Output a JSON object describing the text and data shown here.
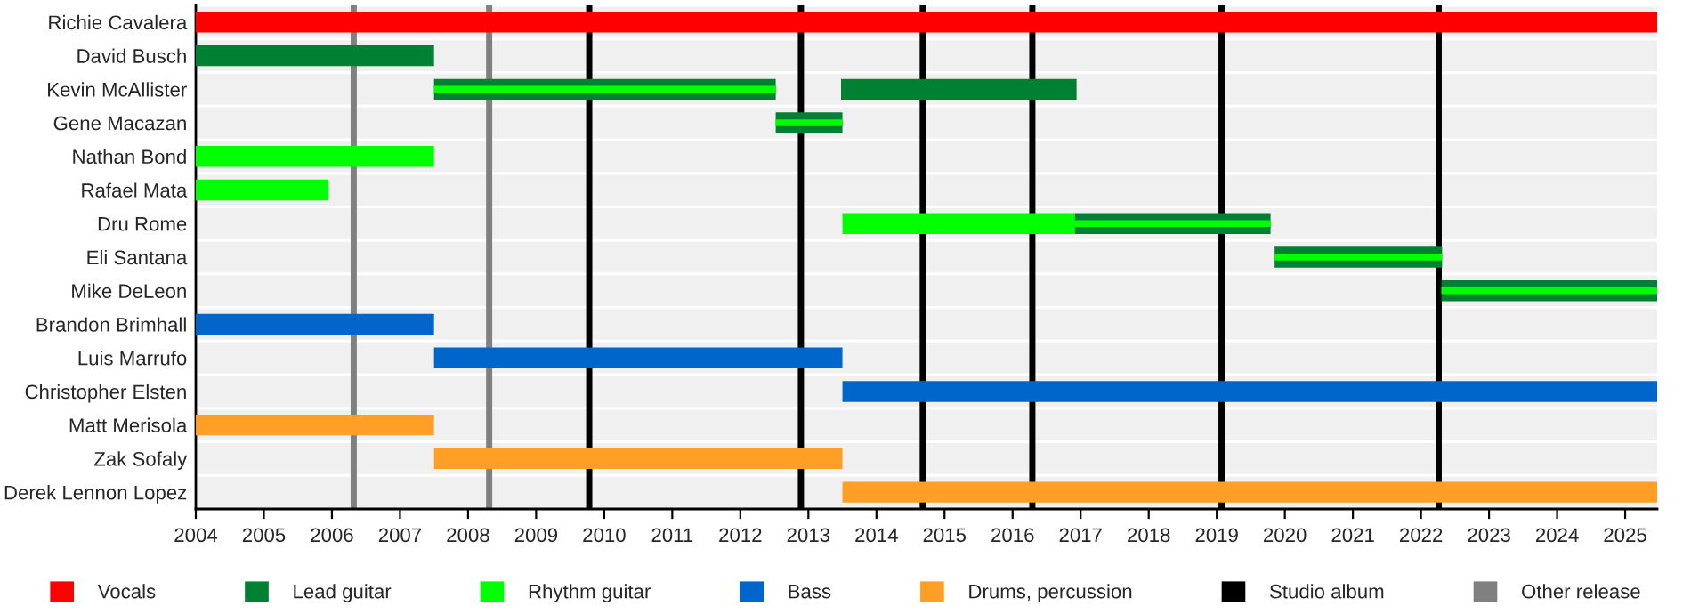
{
  "chart_data": {
    "type": "bar",
    "orientation": "horizontal",
    "categories": [
      "Richie Cavalera",
      "David Busch",
      "Kevin McAllister",
      "Gene Macazan",
      "Nathan Bond",
      "Rafael Mata",
      "Dru Rome",
      "Eli Santana",
      "Mike DeLeon",
      "Brandon Brimhall",
      "Luis Marrufo",
      "Christopher Elsten",
      "Matt Merisola",
      "Zak Sofaly",
      "Derek Lennon Lopez"
    ],
    "series": [
      {
        "name": "Vocals",
        "color": "#ff0000",
        "base": [
          2004,
          null,
          null,
          null,
          null,
          null,
          null,
          null,
          null,
          null,
          null,
          null,
          null,
          null,
          null
        ],
        "values": [
          21.47,
          null,
          null,
          null,
          null,
          null,
          null,
          null,
          null,
          null,
          null,
          null,
          null,
          null,
          null
        ]
      },
      {
        "name": "Lead guitar",
        "color": "#008033",
        "base": [
          null,
          2004,
          2007.5,
          2012.52,
          null,
          null,
          2016.91,
          2019.85,
          2022.3,
          null,
          null,
          null,
          null,
          null,
          null
        ],
        "values": [
          null,
          3.5,
          5.02,
          0.98,
          null,
          null,
          2.88,
          2.46,
          3.17,
          null,
          null,
          null,
          null,
          null,
          null
        ]
      },
      {
        "color": "#008033",
        "base": [
          null,
          null,
          2013.48,
          null,
          null,
          null,
          null,
          null,
          null,
          null,
          null,
          null,
          null,
          null,
          null
        ],
        "values": [
          null,
          null,
          3.46,
          null,
          null,
          null,
          null,
          null,
          null,
          null,
          null,
          null,
          null,
          null,
          null
        ]
      },
      {
        "name": "Rhythm guitar",
        "color": "#00ff00",
        "base": [
          null,
          null,
          2007.5,
          2012.52,
          2004,
          2004,
          2013.5,
          2019.85,
          2022.3,
          null,
          null,
          null,
          null,
          null,
          null
        ],
        "values": [
          null,
          null,
          5.02,
          0.98,
          3.5,
          1.95,
          3.41,
          2.46,
          3.17,
          null,
          null,
          null,
          null,
          null,
          null
        ]
      },
      {
        "color": "#00ff00",
        "base": [
          null,
          null,
          null,
          null,
          null,
          null,
          2016.91,
          null,
          null,
          null,
          null,
          null,
          null,
          null,
          null
        ],
        "values": [
          null,
          null,
          null,
          null,
          null,
          null,
          2.88,
          null,
          null,
          null,
          null,
          null,
          null,
          null,
          null
        ]
      },
      {
        "name": "Bass",
        "color": "#0066cc",
        "base": [
          null,
          null,
          null,
          null,
          null,
          null,
          null,
          null,
          null,
          2004,
          2007.5,
          2013.5,
          null,
          null,
          null
        ],
        "values": [
          null,
          null,
          null,
          null,
          null,
          null,
          null,
          null,
          null,
          3.5,
          6.0,
          11.97,
          null,
          null,
          null
        ]
      },
      {
        "name": "Drums, percussion",
        "color": "#ff9f26",
        "base": [
          null,
          null,
          null,
          null,
          null,
          null,
          null,
          null,
          null,
          null,
          null,
          null,
          2004,
          2007.5,
          2013.5
        ],
        "values": [
          null,
          null,
          null,
          null,
          null,
          null,
          null,
          null,
          null,
          null,
          null,
          null,
          3.5,
          6.0,
          11.97
        ]
      }
    ],
    "ref_lines": [
      {
        "axis": "x",
        "value": 2009.78,
        "label": "Studio album",
        "color": "#000000"
      },
      {
        "axis": "x",
        "value": 2012.89,
        "color": "#000000"
      },
      {
        "axis": "x",
        "value": 2014.68,
        "color": "#000000"
      },
      {
        "axis": "x",
        "value": 2016.29,
        "color": "#000000"
      },
      {
        "axis": "x",
        "value": 2019.07,
        "color": "#000000"
      },
      {
        "axis": "x",
        "value": 2022.26,
        "color": "#000000"
      },
      {
        "axis": "x",
        "value": 2006.32,
        "label": "Other release",
        "color": "#808080"
      },
      {
        "axis": "x",
        "value": 2008.31,
        "color": "#808080"
      }
    ],
    "xlim": [
      2004,
      2025.47
    ],
    "xticks": [
      2004,
      2005,
      2006,
      2007,
      2008,
      2009,
      2010,
      2011,
      2012,
      2013,
      2014,
      2015,
      2016,
      2017,
      2018,
      2019,
      2020,
      2021,
      2022,
      2023,
      2024,
      2025
    ],
    "grid": "y",
    "legend": "bottom"
  }
}
